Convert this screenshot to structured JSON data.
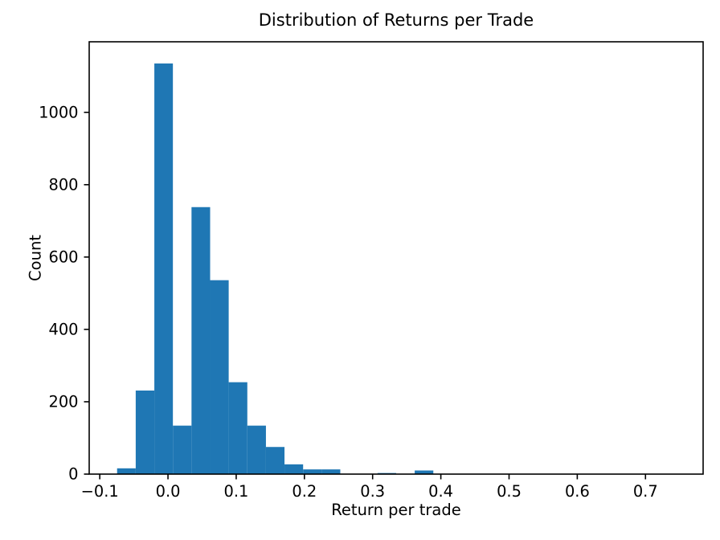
{
  "figure": {
    "background": "#ffffff",
    "text_color": "#000000",
    "axis_color": "#000000"
  },
  "chart_data": {
    "type": "bar",
    "subtype": "histogram",
    "title": "Distribution of Returns per Trade",
    "xlabel": "Return per trade",
    "ylabel": "Count",
    "bar_color": "#1f77b4",
    "grid": false,
    "legend_position": "none",
    "xlim": [
      -0.1155,
      0.7845
    ],
    "ylim": [
      0,
      1195
    ],
    "x_ticks": [
      -0.1,
      0.0,
      0.1,
      0.2,
      0.3,
      0.4,
      0.5,
      0.6,
      0.7
    ],
    "x_tick_labels": [
      "−0.1",
      "0.0",
      "0.1",
      "0.2",
      "0.3",
      "0.4",
      "0.5",
      "0.6",
      "0.7"
    ],
    "y_ticks": [
      0,
      200,
      400,
      600,
      800,
      1000
    ],
    "y_tick_labels": [
      "0",
      "200",
      "400",
      "600",
      "800",
      "1000"
    ],
    "bin_edges": [
      -0.0746,
      -0.0473,
      -0.02,
      0.0072,
      0.0345,
      0.0618,
      0.089,
      0.1163,
      0.1436,
      0.1708,
      0.1981,
      0.2254,
      0.2526,
      0.2799,
      0.3072,
      0.3345,
      0.3617,
      0.389,
      0.4163,
      0.4435,
      0.4708,
      0.4981,
      0.5253,
      0.5526,
      0.5799,
      0.6071,
      0.6344,
      0.6617,
      0.689,
      0.7162,
      0.7435
    ],
    "counts": [
      16,
      231,
      1135,
      134,
      738,
      536,
      254,
      134,
      75,
      27,
      13,
      13,
      0,
      0,
      3,
      0,
      10,
      0,
      0,
      0,
      0,
      0,
      0,
      0,
      0,
      0,
      0,
      0,
      0,
      1
    ]
  }
}
